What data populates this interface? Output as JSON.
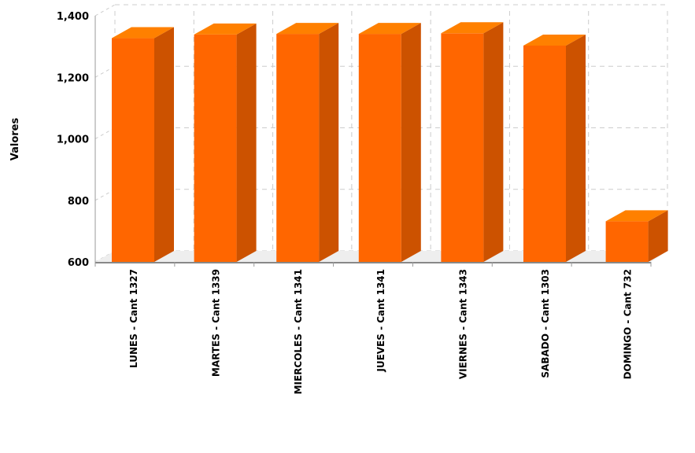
{
  "chart_data": {
    "type": "bar",
    "style": "3d-column",
    "title": "",
    "xlabel": "",
    "ylabel": "Valores",
    "ylim": [
      600,
      1400
    ],
    "yticks": [
      600,
      800,
      1000,
      1200,
      1400
    ],
    "ytick_labels": [
      "600",
      "800",
      "1,000",
      "1,200",
      "1,400"
    ],
    "categories": [
      "LUNES - Cant 1327",
      "MARTES - Cant 1339",
      "MIERCOLES - Cant 1341",
      "JUEVES - Cant 1341",
      "VIERNES - Cant 1343",
      "SABADO - Cant 1303",
      "DOMINGO - Cant 732"
    ],
    "values": [
      1327,
      1339,
      1341,
      1341,
      1343,
      1303,
      732
    ],
    "grid": true,
    "legend": "none",
    "colors": {
      "front": "#ff6600",
      "side": "#cc5200",
      "top": "#ff8000",
      "grid": "#cccccc",
      "floor": "#888888"
    }
  }
}
